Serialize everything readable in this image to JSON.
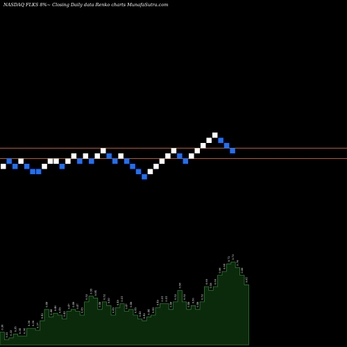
{
  "title": "NASDAQ FLKS 8%~  Closing Daily data  Renko  charts MunafaSutra.com",
  "colors": {
    "background": "#000000",
    "up_brick": "#ffffff",
    "down_brick": "#1e6fff",
    "reference_line": "#b0602a",
    "volume_fill": "#0b2a0b",
    "volume_stroke": "#2e7d32",
    "volume_label": "#ffffff"
  },
  "chart_data": [
    {
      "type": "renko",
      "title": "NASDAQ FLKS 8%~  Closing Daily data  Renko  charts MunafaSutra.com",
      "brick_size_percent": 8,
      "levels": [
        -2,
        -1,
        -2,
        -1,
        -2,
        -3,
        -3,
        -2,
        -1,
        -1,
        -2,
        -1,
        0,
        -1,
        0,
        -1,
        0,
        1,
        0,
        -1,
        0,
        -1,
        -2,
        -3,
        -4,
        -3,
        -2,
        -1,
        0,
        1,
        0,
        -1,
        0,
        1,
        2,
        3,
        4,
        3,
        2,
        1
      ],
      "directions": [
        "up",
        "down",
        "down",
        "up",
        "down",
        "down",
        "down",
        "up",
        "up",
        "up",
        "down",
        "up",
        "up",
        "down",
        "up",
        "down",
        "up",
        "up",
        "down",
        "down",
        "up",
        "down",
        "down",
        "down",
        "down",
        "up",
        "up",
        "up",
        "up",
        "up",
        "down",
        "down",
        "up",
        "up",
        "up",
        "up",
        "up",
        "down",
        "down",
        "down"
      ],
      "reference_levels": [
        1.5,
        -0.5
      ],
      "grid": false,
      "legend": "none"
    },
    {
      "type": "area",
      "title": "",
      "values": [
        0.36,
        0.32,
        0.33,
        0.35,
        0.34,
        0.34,
        0.38,
        0.38,
        0.37,
        0.42,
        0.48,
        0.44,
        0.46,
        0.45,
        0.43,
        0.47,
        0.48,
        0.47,
        0.45,
        0.52,
        0.55,
        0.54,
        0.48,
        0.52,
        0.5,
        0.45,
        0.49,
        0.51,
        0.47,
        0.48,
        0.45,
        0.43,
        0.42,
        0.44,
        0.45,
        0.49,
        0.51,
        0.51,
        0.48,
        0.52,
        0.58,
        0.52,
        0.48,
        0.5,
        0.48,
        0.52,
        0.6,
        0.58,
        0.6,
        0.66,
        0.68,
        0.72,
        0.73,
        0.7,
        0.66,
        0.61
      ],
      "labels": [
        "0.36",
        "0.32",
        "0.33",
        "0.35",
        "0.34",
        "0.34",
        "0.38",
        "0.38",
        "0.37",
        "0.42",
        "0.48",
        "0.44",
        "0.46",
        "0.45",
        "0.43",
        "0.47",
        "0.48",
        "0.47",
        "0.45",
        "0.52",
        "0.55",
        "0.54",
        "0.48",
        "0.52",
        "0.50",
        "0.45",
        "0.49",
        "0.51",
        "0.47",
        "0.48",
        "0.45",
        "0.43",
        "0.42",
        "0.44",
        "0.45",
        "0.49",
        "0.51",
        "0.51",
        "0.48",
        "0.52",
        "0.58",
        "0.52",
        "0.48",
        "0.50",
        "0.48",
        "0.52",
        "0.60",
        "0.58",
        "0.60",
        "0.66",
        "0.68",
        "0.72",
        "0.73",
        "0.70",
        "0.66",
        "0.61"
      ],
      "ylim": [
        0.3,
        0.75
      ],
      "grid": false,
      "legend": "none"
    }
  ]
}
